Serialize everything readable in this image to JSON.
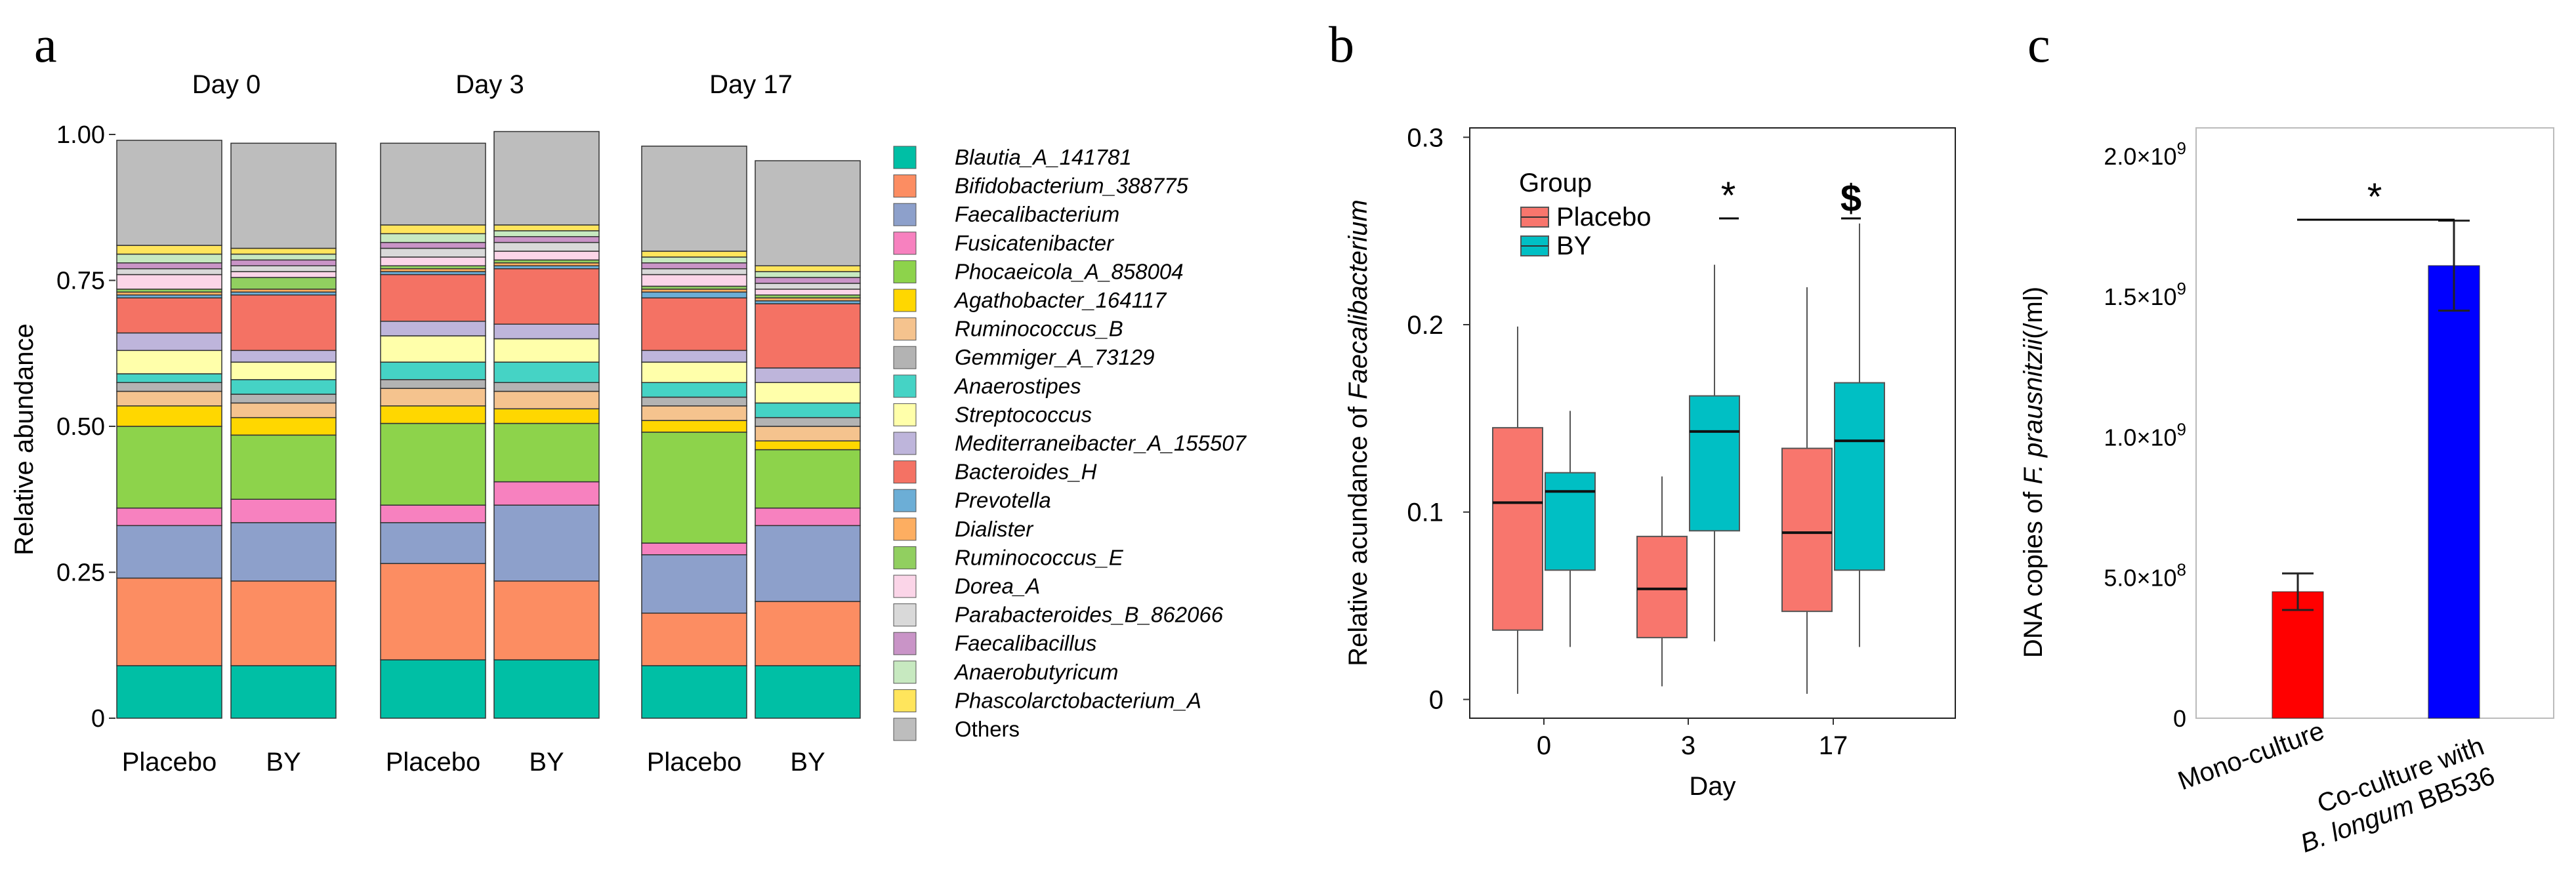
{
  "colors": {
    "placebo": "#F8766D",
    "by": "#00BFC4",
    "mono": "#FF0000",
    "coculture": "#0000FF",
    "taxa": [
      "#00BFA5",
      "#FC8D62",
      "#8DA0CB",
      "#F781BF",
      "#8DD34B",
      "#FFD700",
      "#F5C38E",
      "#B3B3B3",
      "#45D3C5",
      "#FFFFAA",
      "#BEB5DB",
      "#F47264",
      "#6CAED6",
      "#FDAE61",
      "#91CF60",
      "#FBD5E8",
      "#D9D9D9",
      "#C994C7",
      "#C7E9C0",
      "#FFE55C",
      "#BDBDBD"
    ]
  },
  "chart_data": [
    {
      "panel": "a",
      "type": "bar",
      "stacked": true,
      "title": "",
      "ylabel": "Relative abundance",
      "ylim": [
        0,
        1
      ],
      "yticks": [
        "0",
        "0.25",
        "0.50",
        "0.75",
        "1.00"
      ],
      "groups": [
        "Day 0",
        "Day 3",
        "Day 17"
      ],
      "categories": [
        "Placebo",
        "BY"
      ],
      "taxa": [
        "Blautia_A_141781",
        "Bifidobacterium_388775",
        "Faecalibacterium",
        "Fusicatenibacter",
        "Phocaeicola_A_858004",
        "Agathobacter_164117",
        "Ruminococcus_B",
        "Gemmiger_A_73129",
        "Anaerostipes",
        "Streptococcus",
        "Mediterraneibacter_A_155507",
        "Bacteroides_H",
        "Prevotella",
        "Dialister",
        "Ruminococcus_E",
        "Dorea_A",
        "Parabacteroides_B_862066",
        "Faecalibacillus",
        "Anaerobutyricum",
        "Phascolarctobacterium_A",
        "Others"
      ],
      "bars": [
        {
          "group": "Day 0",
          "label": "Placebo",
          "values": [
            0.09,
            0.15,
            0.09,
            0.03,
            0.14,
            0.035,
            0.025,
            0.015,
            0.015,
            0.04,
            0.03,
            0.06,
            0.005,
            0.005,
            0.005,
            0.025,
            0.01,
            0.01,
            0.015,
            0.015,
            0.18
          ]
        },
        {
          "group": "Day 0",
          "label": "BY",
          "values": [
            0.09,
            0.145,
            0.1,
            0.04,
            0.11,
            0.03,
            0.025,
            0.015,
            0.025,
            0.03,
            0.02,
            0.095,
            0.005,
            0.005,
            0.02,
            0.01,
            0.01,
            0.01,
            0.01,
            0.01,
            0.18
          ]
        },
        {
          "group": "Day 3",
          "label": "Placebo",
          "values": [
            0.1,
            0.165,
            0.07,
            0.03,
            0.14,
            0.03,
            0.03,
            0.015,
            0.03,
            0.045,
            0.025,
            0.08,
            0.005,
            0.005,
            0.005,
            0.015,
            0.015,
            0.01,
            0.015,
            0.015,
            0.14
          ]
        },
        {
          "group": "Day 3",
          "label": "BY",
          "values": [
            0.1,
            0.135,
            0.13,
            0.04,
            0.1,
            0.025,
            0.03,
            0.015,
            0.035,
            0.04,
            0.025,
            0.095,
            0.005,
            0.005,
            0.005,
            0.015,
            0.015,
            0.01,
            0.01,
            0.01,
            0.16
          ]
        },
        {
          "group": "Day 17",
          "label": "Placebo",
          "values": [
            0.09,
            0.09,
            0.1,
            0.02,
            0.19,
            0.02,
            0.025,
            0.015,
            0.025,
            0.035,
            0.02,
            0.09,
            0.01,
            0.005,
            0.005,
            0.02,
            0.01,
            0.01,
            0.01,
            0.01,
            0.18
          ]
        },
        {
          "group": "Day 17",
          "label": "BY",
          "values": [
            0.09,
            0.11,
            0.13,
            0.03,
            0.1,
            0.015,
            0.025,
            0.015,
            0.025,
            0.035,
            0.025,
            0.11,
            0.005,
            0.005,
            0.005,
            0.01,
            0.01,
            0.01,
            0.01,
            0.01,
            0.18
          ]
        }
      ]
    },
    {
      "panel": "b",
      "type": "box",
      "xlabel": "Day",
      "ylabel_prefix": "Relative acundance of ",
      "ylabel_italic": "Faecalibacterium",
      "ylim": [
        -0.01,
        0.305
      ],
      "yticks": [
        0,
        0.1,
        0.2,
        0.3
      ],
      "ytick_labels": [
        "0",
        "0.1",
        "0.2",
        "0.3"
      ],
      "categories": [
        "0",
        "3",
        "17"
      ],
      "legend_title": "Group",
      "series": [
        {
          "name": "Placebo",
          "boxes": [
            {
              "min": 0.003,
              "q1": 0.037,
              "median": 0.105,
              "q3": 0.145,
              "max": 0.199
            },
            {
              "min": 0.007,
              "q1": 0.033,
              "median": 0.059,
              "q3": 0.087,
              "max": 0.119
            },
            {
              "min": 0.003,
              "q1": 0.047,
              "median": 0.089,
              "q3": 0.134,
              "max": 0.22
            }
          ]
        },
        {
          "name": "BY",
          "boxes": [
            {
              "min": 0.028,
              "q1": 0.069,
              "median": 0.111,
              "q3": 0.121,
              "max": 0.154
            },
            {
              "min": 0.031,
              "q1": 0.09,
              "median": 0.143,
              "q3": 0.162,
              "max": 0.232
            },
            {
              "min": 0.028,
              "q1": 0.069,
              "median": 0.138,
              "q3": 0.169,
              "max": 0.254
            }
          ]
        }
      ],
      "annotations": [
        "*",
        "$"
      ]
    },
    {
      "panel": "c",
      "type": "bar",
      "ylabel_prefix": "DNA copies of ",
      "ylabel_italic": "F. prausnitzii",
      "ylabel_suffix": "(/ml)",
      "ylim": [
        0,
        2100000000
      ],
      "yticks": [
        0,
        500000000,
        1000000000,
        1500000000,
        2000000000
      ],
      "ytick_labels": [
        {
          "mant": "0",
          "exp": ""
        },
        {
          "mant": "5.0×10",
          "exp": "8"
        },
        {
          "mant": "1.0×10",
          "exp": "9"
        },
        {
          "mant": "1.5×10",
          "exp": "9"
        },
        {
          "mant": "2.0×10",
          "exp": "9"
        }
      ],
      "categories": [
        "Mono-culture",
        "Co-culture with B. longum BB536"
      ],
      "category_lines": [
        [
          {
            "t": "Mono-culture",
            "i": false
          }
        ],
        [
          {
            "t": "Co-culture with",
            "i": false
          }
        ],
        [
          {
            "t": "B. longum",
            "i": true
          },
          {
            "t": " BB536",
            "i": false
          }
        ]
      ],
      "values": [
        450000000,
        1610000000
      ],
      "errors": [
        65000000,
        160000000
      ],
      "annotation": "*"
    }
  ]
}
